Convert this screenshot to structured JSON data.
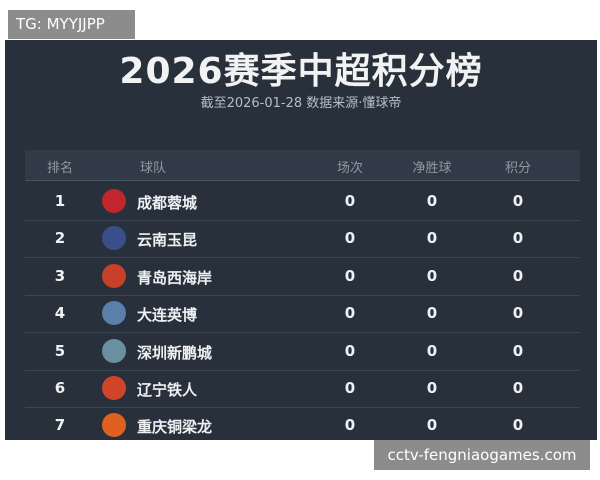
{
  "watermark_top": "TG: MYYJJPP",
  "watermark_bottom": "cctv-fengniaogames.com",
  "header": {
    "title": "2026赛季中超积分榜",
    "subtitle": "截至2026-01-28 数据来源·懂球帝"
  },
  "table": {
    "columns": [
      "排名",
      "球队",
      "场次",
      "净胜球",
      "积分"
    ],
    "rows": [
      [
        1,
        "成都蓉城",
        0,
        0,
        0
      ],
      [
        2,
        "云南玉昆",
        0,
        0,
        0
      ],
      [
        3,
        "青岛西海岸",
        0,
        0,
        0
      ],
      [
        4,
        "大连英博",
        0,
        0,
        0
      ],
      [
        5,
        "深圳新鹏城",
        0,
        0,
        0
      ],
      [
        6,
        "辽宁铁人",
        0,
        0,
        0
      ],
      [
        7,
        "重庆铜梁龙",
        0,
        0,
        0
      ]
    ]
  }
}
